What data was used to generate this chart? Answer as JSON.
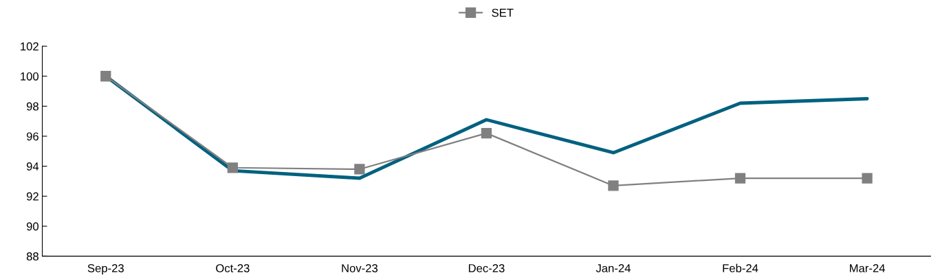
{
  "chart_data": {
    "type": "line",
    "categories": [
      "Sep-23",
      "Oct-23",
      "Nov-23",
      "Dec-23",
      "Jan-24",
      "Feb-24",
      "Mar-24"
    ],
    "series": [
      {
        "color": "#00617f",
        "marker": "none",
        "values": [
          100,
          93.7,
          93.2,
          97.1,
          94.9,
          98.2,
          98.5
        ]
      },
      {
        "name": "SET",
        "color": "#808080",
        "marker": "square",
        "values": [
          100,
          93.9,
          93.8,
          96.2,
          92.7,
          93.2,
          93.2
        ]
      }
    ],
    "ylim": [
      88,
      102
    ],
    "yticks": [
      88,
      90,
      92,
      94,
      96,
      98,
      100,
      102
    ],
    "grid": false,
    "legend": "top"
  }
}
